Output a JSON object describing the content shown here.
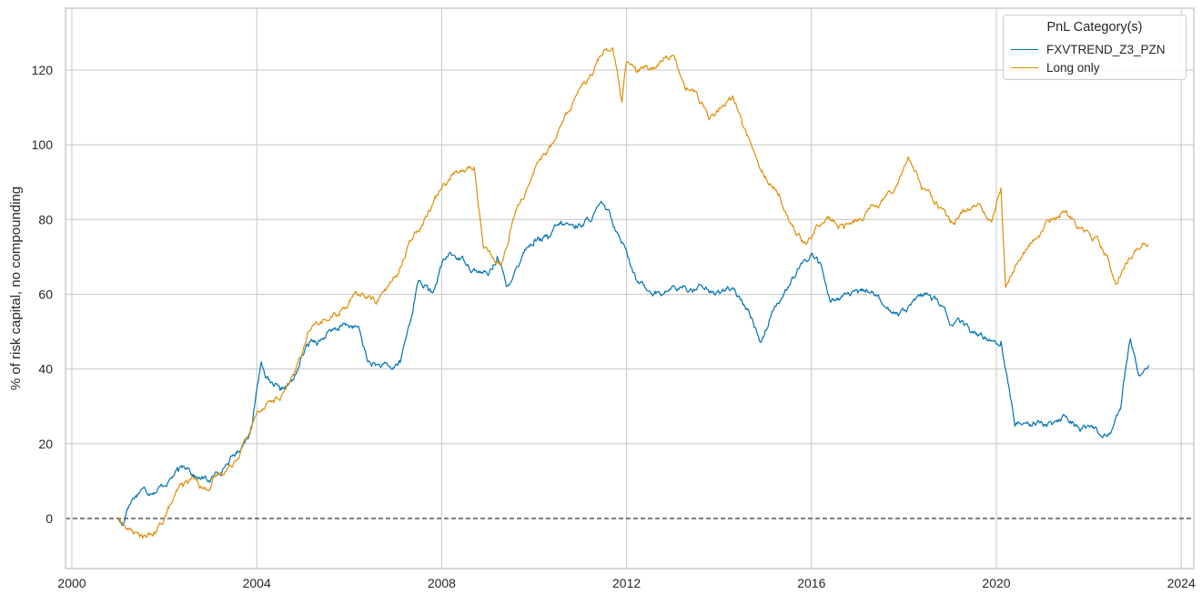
{
  "chart_data": {
    "type": "line",
    "title": "",
    "xlabel": "",
    "ylabel": "% of risk capital, no compounding",
    "xlim": [
      2000,
      2024.5
    ],
    "ylim": [
      -13,
      136
    ],
    "x_ticks": [
      "2000",
      "2004",
      "2008",
      "2012",
      "2016",
      "2020",
      "2024"
    ],
    "y_ticks": [
      "0",
      "20",
      "40",
      "60",
      "80",
      "100",
      "120"
    ],
    "grid": true,
    "zero_line": {
      "value": 0,
      "style": "dashed",
      "color": "#000000"
    },
    "legend": {
      "title": "PnL Category(s)",
      "position": "upper right"
    },
    "series": [
      {
        "name": "FXVTREND_Z3_PZN",
        "color": "#0173b2",
        "x": [
          2001.0,
          2001.1,
          2001.2,
          2001.3,
          2001.5,
          2001.7,
          2002.0,
          2002.3,
          2002.5,
          2002.7,
          2003.0,
          2003.3,
          2003.6,
          2003.9,
          2004.0,
          2004.1,
          2004.3,
          2004.5,
          2004.8,
          2005.0,
          2005.2,
          2005.4,
          2005.6,
          2005.9,
          2006.2,
          2006.4,
          2006.6,
          2006.9,
          2007.1,
          2007.3,
          2007.5,
          2007.8,
          2008.0,
          2008.2,
          2008.5,
          2008.8,
          2009.0,
          2009.2,
          2009.4,
          2009.6,
          2009.8,
          2010.0,
          2010.3,
          2010.6,
          2010.9,
          2011.2,
          2011.5,
          2011.8,
          2012.0,
          2012.2,
          2012.5,
          2012.8,
          2013.0,
          2013.3,
          2013.6,
          2013.9,
          2014.2,
          2014.5,
          2014.7,
          2014.9,
          2015.2,
          2015.5,
          2015.8,
          2016.0,
          2016.2,
          2016.4,
          2016.7,
          2017.0,
          2017.3,
          2017.6,
          2017.9,
          2018.2,
          2018.5,
          2018.8,
          2019.0,
          2019.3,
          2019.6,
          2019.9,
          2020.1,
          2020.2,
          2020.4,
          2020.6,
          2020.9,
          2021.2,
          2021.5,
          2021.8,
          2022.0,
          2022.3,
          2022.5,
          2022.7,
          2022.8,
          2022.9,
          2023.1,
          2023.3
        ],
        "values": [
          0,
          -2,
          3,
          5,
          8,
          7,
          9,
          13,
          14,
          11,
          10,
          14,
          18,
          25,
          35,
          42,
          36,
          34,
          37,
          44,
          48,
          48,
          50,
          52,
          51,
          42,
          41,
          40,
          42,
          52,
          64,
          60,
          68,
          71,
          69,
          66,
          65,
          70,
          62,
          67,
          72,
          74,
          75,
          79,
          78,
          80,
          84,
          77,
          72,
          64,
          61,
          60,
          62,
          61,
          63,
          60,
          62,
          58,
          54,
          47,
          57,
          62,
          68,
          71,
          68,
          58,
          60,
          60,
          61,
          56,
          55,
          58,
          60,
          57,
          52,
          52,
          49,
          48,
          47,
          40,
          25,
          26,
          26,
          25,
          27,
          24,
          25,
          22,
          24,
          30,
          40,
          48,
          38,
          41
        ]
      },
      {
        "name": "Long only",
        "color": "#de8f05",
        "x": [
          2001.0,
          2001.1,
          2001.2,
          2001.4,
          2001.6,
          2001.8,
          2002.0,
          2002.2,
          2002.4,
          2002.6,
          2002.9,
          2003.2,
          2003.5,
          2003.8,
          2004.0,
          2004.2,
          2004.5,
          2004.8,
          2005.0,
          2005.2,
          2005.5,
          2005.8,
          2006.0,
          2006.3,
          2006.6,
          2006.9,
          2007.1,
          2007.4,
          2007.7,
          2008.0,
          2008.2,
          2008.5,
          2008.7,
          2008.9,
          2009.1,
          2009.3,
          2009.6,
          2009.9,
          2010.1,
          2010.4,
          2010.7,
          2011.0,
          2011.3,
          2011.5,
          2011.7,
          2011.9,
          2012.0,
          2012.2,
          2012.5,
          2012.8,
          2013.0,
          2013.3,
          2013.5,
          2013.8,
          2014.0,
          2014.3,
          2014.5,
          2014.7,
          2014.9,
          2015.1,
          2015.3,
          2015.5,
          2015.7,
          2015.9,
          2016.1,
          2016.4,
          2016.7,
          2017.0,
          2017.3,
          2017.6,
          2017.9,
          2018.1,
          2018.4,
          2018.7,
          2019.0,
          2019.3,
          2019.6,
          2019.9,
          2020.0,
          2020.1,
          2020.2,
          2020.4,
          2020.7,
          2021.0,
          2021.2,
          2021.5,
          2021.8,
          2022.0,
          2022.2,
          2022.4,
          2022.6,
          2022.8,
          2023.0,
          2023.3
        ],
        "values": [
          0,
          -1,
          -3,
          -4,
          -5,
          -4,
          0,
          5,
          9,
          11,
          8,
          12,
          15,
          22,
          28,
          31,
          32,
          38,
          45,
          52,
          53,
          55,
          58,
          60,
          58,
          63,
          67,
          76,
          82,
          89,
          92,
          93,
          94,
          73,
          70,
          68,
          82,
          90,
          96,
          100,
          108,
          116,
          120,
          125,
          126,
          111,
          122,
          120,
          120,
          123,
          124,
          115,
          114,
          107,
          110,
          113,
          106,
          100,
          93,
          90,
          87,
          80,
          76,
          74,
          78,
          80,
          78,
          80,
          84,
          86,
          91,
          97,
          88,
          85,
          79,
          82,
          84,
          79,
          84,
          88,
          62,
          67,
          73,
          77,
          80,
          82,
          78,
          77,
          75,
          70,
          63,
          68,
          72,
          73
        ]
      }
    ]
  },
  "legend": {
    "title": "PnL Category(s)",
    "items": [
      {
        "label": "FXVTREND_Z3_PZN",
        "color": "#0173b2"
      },
      {
        "label": "Long only",
        "color": "#de8f05"
      }
    ]
  },
  "axes": {
    "ylabel": "% of risk capital, no compounding",
    "x_ticks": [
      "2000",
      "2004",
      "2008",
      "2012",
      "2016",
      "2020",
      "2024"
    ],
    "y_ticks": [
      "0",
      "20",
      "40",
      "60",
      "80",
      "100",
      "120"
    ]
  }
}
